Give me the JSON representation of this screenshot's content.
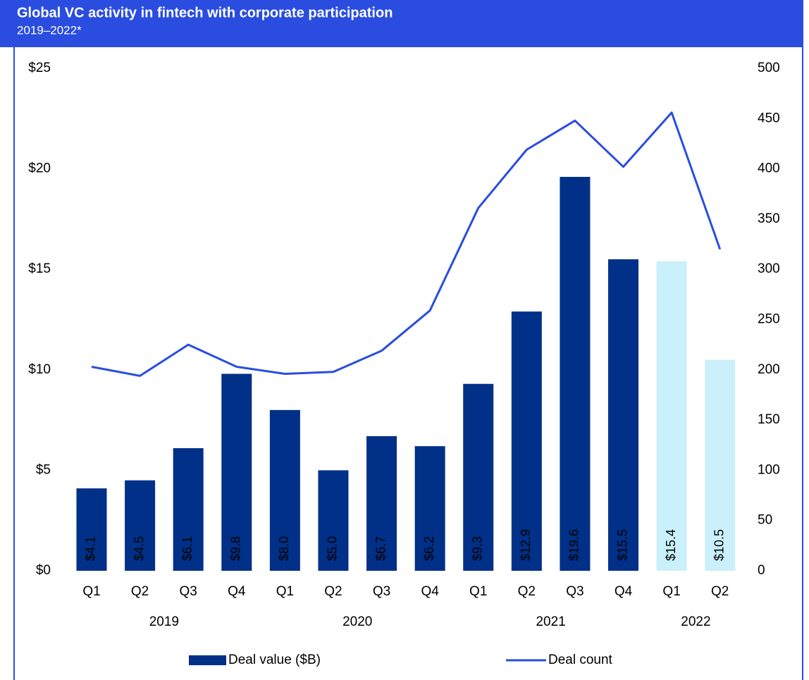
{
  "chart_data": {
    "type": "bar_line",
    "title": "Global VC activity in fintech with corporate participation",
    "subtitle": "2019–2022*",
    "categories": [
      "Q1",
      "Q2",
      "Q3",
      "Q4",
      "Q1",
      "Q2",
      "Q3",
      "Q4",
      "Q1",
      "Q2",
      "Q3",
      "Q4",
      "Q1",
      "Q2"
    ],
    "category_years": [
      "2019",
      "2019",
      "2019",
      "2019",
      "2020",
      "2020",
      "2020",
      "2020",
      "2021",
      "2021",
      "2021",
      "2021",
      "2022",
      "2022"
    ],
    "series": [
      {
        "name": "Deal value ($B)",
        "type": "bar",
        "axis": "y",
        "color": "#003087",
        "colors": [
          "#003087",
          "#003087",
          "#003087",
          "#003087",
          "#003087",
          "#003087",
          "#003087",
          "#003087",
          "#003087",
          "#003087",
          "#003087",
          "#003087",
          "#c9f0fb",
          "#c9f0fb"
        ],
        "values": [
          4.1,
          4.5,
          6.1,
          9.8,
          8.0,
          5.0,
          6.7,
          6.2,
          9.3,
          12.9,
          19.6,
          15.5,
          15.4,
          10.5
        ],
        "value_labels": [
          "$4.1",
          "$4.5",
          "$6.1",
          "$9.8",
          "$8.0",
          "$5.0",
          "$6.7",
          "$6.2",
          "$9.3",
          "$12.9",
          "$19.6",
          "$15.5",
          "$15.4",
          "$10.5"
        ]
      },
      {
        "name": "Deal count",
        "type": "line",
        "axis": "y2",
        "color": "#2a4de0",
        "values": [
          203,
          194,
          225,
          203,
          196,
          198,
          219,
          259,
          361,
          419,
          448,
          402,
          456,
          320
        ]
      }
    ],
    "ylim": [
      0,
      25
    ],
    "yticks": [
      {
        "value": 0,
        "label": "$0"
      },
      {
        "value": 5,
        "label": "$5"
      },
      {
        "value": 10,
        "label": "$10"
      },
      {
        "value": 15,
        "label": "$15"
      },
      {
        "value": 20,
        "label": "$20"
      },
      {
        "value": 25,
        "label": "$25"
      }
    ],
    "y2lim": [
      0,
      500
    ],
    "y2ticks": [
      0,
      50,
      100,
      150,
      200,
      250,
      300,
      350,
      400,
      450,
      500
    ],
    "header_color": "#2a4de0"
  }
}
